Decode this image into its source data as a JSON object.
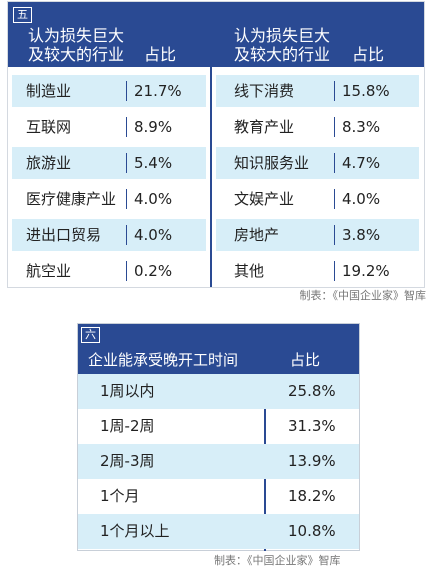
{
  "panel1": {
    "tag": "五",
    "left_header": {
      "industry": "认为损失巨大\n及较大的行业",
      "share": "占比"
    },
    "right_header": {
      "industry": "认为损失巨大\n及较大的行业",
      "share": "占比"
    },
    "left_rows": [
      {
        "industry": "制造业",
        "share": "21.7%"
      },
      {
        "industry": "互联网",
        "share": "8.9%"
      },
      {
        "industry": "旅游业",
        "share": "5.4%"
      },
      {
        "industry": "医疗健康产业",
        "share": "4.0%"
      },
      {
        "industry": "进出口贸易",
        "share": "4.0%"
      },
      {
        "industry": "航空业",
        "share": "0.2%"
      }
    ],
    "right_rows": [
      {
        "industry": "线下消费",
        "share": "15.8%"
      },
      {
        "industry": "教育产业",
        "share": "8.3%"
      },
      {
        "industry": "知识服务业",
        "share": "4.7%"
      },
      {
        "industry": "文娱产业",
        "share": "4.0%"
      },
      {
        "industry": "房地产",
        "share": "3.8%"
      },
      {
        "industry": "其他",
        "share": "19.2%"
      }
    ],
    "footer": "制表：《中国企业家》智库"
  },
  "panel2": {
    "tag": "六",
    "header": {
      "duration": "企业能承受晚开工时间",
      "share": "占比"
    },
    "rows": [
      {
        "duration": "1周以内",
        "share": "25.8%"
      },
      {
        "duration": "1周-2周",
        "share": "31.3%"
      },
      {
        "duration": "2周-3周",
        "share": "13.9%"
      },
      {
        "duration": "1个月",
        "share": "18.2%"
      },
      {
        "duration": "1个月以上",
        "share": "10.8%"
      }
    ],
    "footer": "制表：《中国企业家》智库"
  },
  "colors": {
    "header": "#2a4a93",
    "stripe": "#d7eef8"
  }
}
